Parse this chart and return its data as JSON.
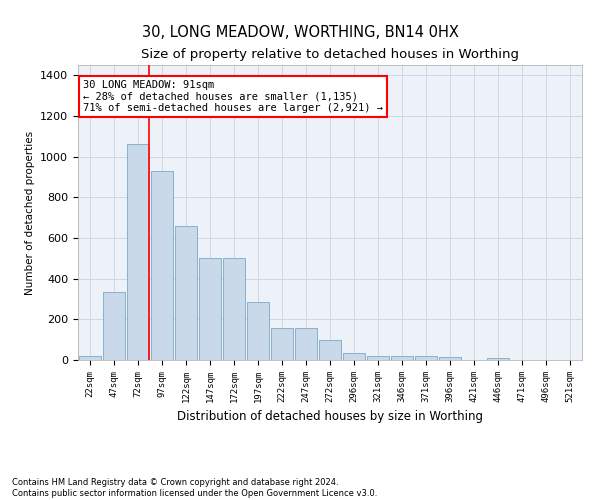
{
  "title": "30, LONG MEADOW, WORTHING, BN14 0HX",
  "subtitle": "Size of property relative to detached houses in Worthing",
  "xlabel": "Distribution of detached houses by size in Worthing",
  "ylabel": "Number of detached properties",
  "bar_labels": [
    "22sqm",
    "47sqm",
    "72sqm",
    "97sqm",
    "122sqm",
    "147sqm",
    "172sqm",
    "197sqm",
    "222sqm",
    "247sqm",
    "272sqm",
    "296sqm",
    "321sqm",
    "346sqm",
    "371sqm",
    "396sqm",
    "421sqm",
    "446sqm",
    "471sqm",
    "496sqm",
    "521sqm"
  ],
  "bar_values": [
    20,
    335,
    1060,
    930,
    660,
    500,
    500,
    285,
    155,
    155,
    100,
    35,
    20,
    20,
    20,
    15,
    0,
    10,
    0,
    0,
    0
  ],
  "bar_color": "#c9d9ea",
  "bar_edge_color": "#8ab0cc",
  "grid_color": "#ccd8e5",
  "background_color": "#edf2f8",
  "vline_color": "red",
  "vline_pos": 2.45,
  "annotation_box_text": "30 LONG MEADOW: 91sqm\n← 28% of detached houses are smaller (1,135)\n71% of semi-detached houses are larger (2,921) →",
  "ylim": [
    0,
    1450
  ],
  "yticks": [
    0,
    200,
    400,
    600,
    800,
    1000,
    1200,
    1400
  ],
  "footer": "Contains HM Land Registry data © Crown copyright and database right 2024.\nContains public sector information licensed under the Open Government Licence v3.0."
}
